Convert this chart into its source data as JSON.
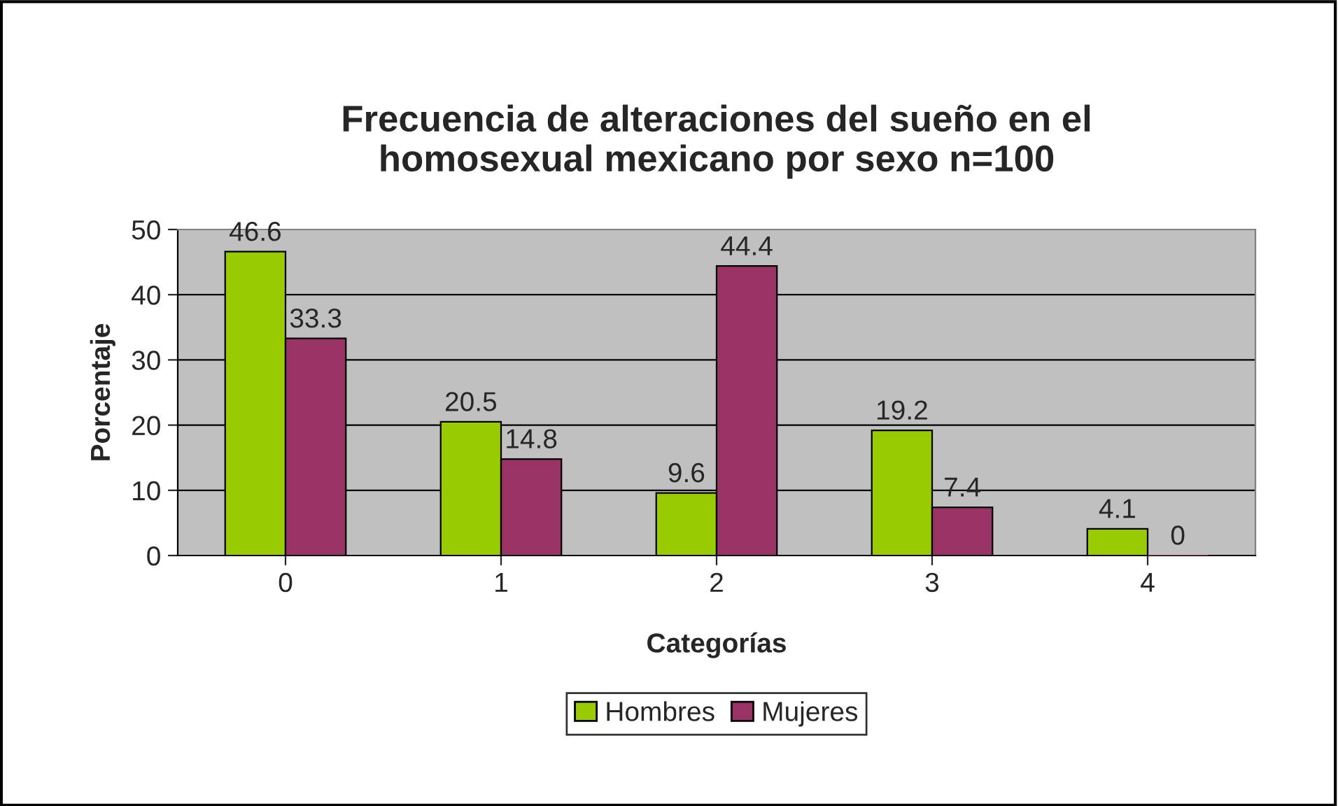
{
  "chart_data": {
    "type": "bar",
    "title": "Frecuencia de alteraciones del sueño en el\nhomosexual mexicano por sexo n=100",
    "xlabel": "Categorías",
    "ylabel": "Porcentaje",
    "categories": [
      "0",
      "1",
      "2",
      "3",
      "4"
    ],
    "series": [
      {
        "name": "Hombres",
        "color": "#99cc00",
        "values": [
          46.6,
          20.5,
          9.6,
          19.2,
          4.1
        ]
      },
      {
        "name": "Mujeres",
        "color": "#993366",
        "values": [
          33.3,
          14.8,
          44.4,
          7.4,
          0
        ]
      }
    ],
    "ylim": [
      0,
      50
    ],
    "yticks": [
      0,
      10,
      20,
      30,
      40,
      50
    ],
    "grid": "y",
    "legend": "bottom",
    "data_labels": true
  }
}
